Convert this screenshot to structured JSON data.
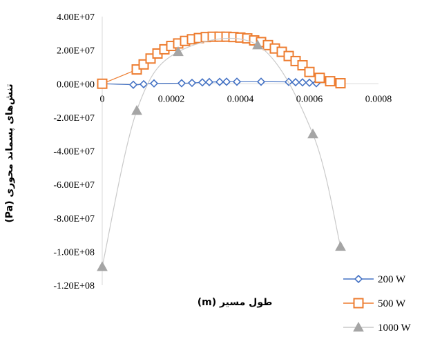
{
  "chart_data": {
    "type": "scatter",
    "title": "",
    "xlabel": "طول مسیر (m)",
    "ylabel": "تنش‌های پسماند محوری (Pa)",
    "xlim": [
      0,
      0.0008
    ],
    "ylim": [
      -120000000,
      40000000
    ],
    "x_ticks": [
      "0",
      "0.0002",
      "0.0004",
      "0.0006",
      "0.0008"
    ],
    "y_ticks": [
      "4.00E+07",
      "2.00E+07",
      "0.00E+00",
      "-2.00E+07",
      "-4.00E+07",
      "-6.00E+07",
      "-8.00E+07",
      "-1.00E+08",
      "-1.20E+08"
    ],
    "grid": false,
    "legend_position": "bottom-right",
    "series": [
      {
        "name": "200 W",
        "color": "#4472C4",
        "marker": "diamond",
        "points": [
          [
            0,
            0
          ],
          [
            9e-05,
            -600000
          ],
          [
            0.00012,
            -300000
          ],
          [
            0.00015,
            200000
          ],
          [
            0.00023,
            300000
          ],
          [
            0.00026,
            500000
          ],
          [
            0.00029,
            800000
          ],
          [
            0.00031,
            1000000
          ],
          [
            0.00034,
            1100000
          ],
          [
            0.00036,
            1200000
          ],
          [
            0.00039,
            1200000
          ],
          [
            0.00046,
            1200000
          ],
          [
            0.00054,
            1100000
          ],
          [
            0.00056,
            900000
          ],
          [
            0.00058,
            800000
          ],
          [
            0.0006,
            600000
          ],
          [
            0.00062,
            300000
          ]
        ]
      },
      {
        "name": "500 W",
        "color": "#ED7D31",
        "marker": "square",
        "points": [
          [
            0,
            0
          ],
          [
            0.0001,
            8500000
          ],
          [
            0.00012,
            11500000
          ],
          [
            0.00014,
            15000000
          ],
          [
            0.00016,
            18000000
          ],
          [
            0.00018,
            20500000
          ],
          [
            0.0002,
            22500000
          ],
          [
            0.00022,
            24000000
          ],
          [
            0.00024,
            25500000
          ],
          [
            0.00026,
            26500000
          ],
          [
            0.00028,
            27200000
          ],
          [
            0.0003,
            27800000
          ],
          [
            0.00032,
            28000000
          ],
          [
            0.00034,
            28000000
          ],
          [
            0.00036,
            28000000
          ],
          [
            0.00038,
            27800000
          ],
          [
            0.0004,
            27500000
          ],
          [
            0.00042,
            27000000
          ],
          [
            0.00044,
            25800000
          ],
          [
            0.00046,
            24800000
          ],
          [
            0.00048,
            23000000
          ],
          [
            0.0005,
            21000000
          ],
          [
            0.00052,
            19000000
          ],
          [
            0.00054,
            16500000
          ],
          [
            0.00056,
            13500000
          ],
          [
            0.00058,
            11000000
          ],
          [
            0.0006,
            7000000
          ],
          [
            0.00063,
            3500000
          ],
          [
            0.00066,
            1500000
          ],
          [
            0.00069,
            300000
          ]
        ]
      },
      {
        "name": "1000 W",
        "color": "#A5A5A5",
        "marker": "triangle",
        "points": [
          [
            0,
            -109000000
          ],
          [
            0.0001,
            -16000000
          ],
          [
            0.00022,
            19000000
          ],
          [
            0.00045,
            23000000
          ],
          [
            0.00061,
            -30000000
          ],
          [
            0.00069,
            -97000000
          ]
        ]
      }
    ]
  }
}
